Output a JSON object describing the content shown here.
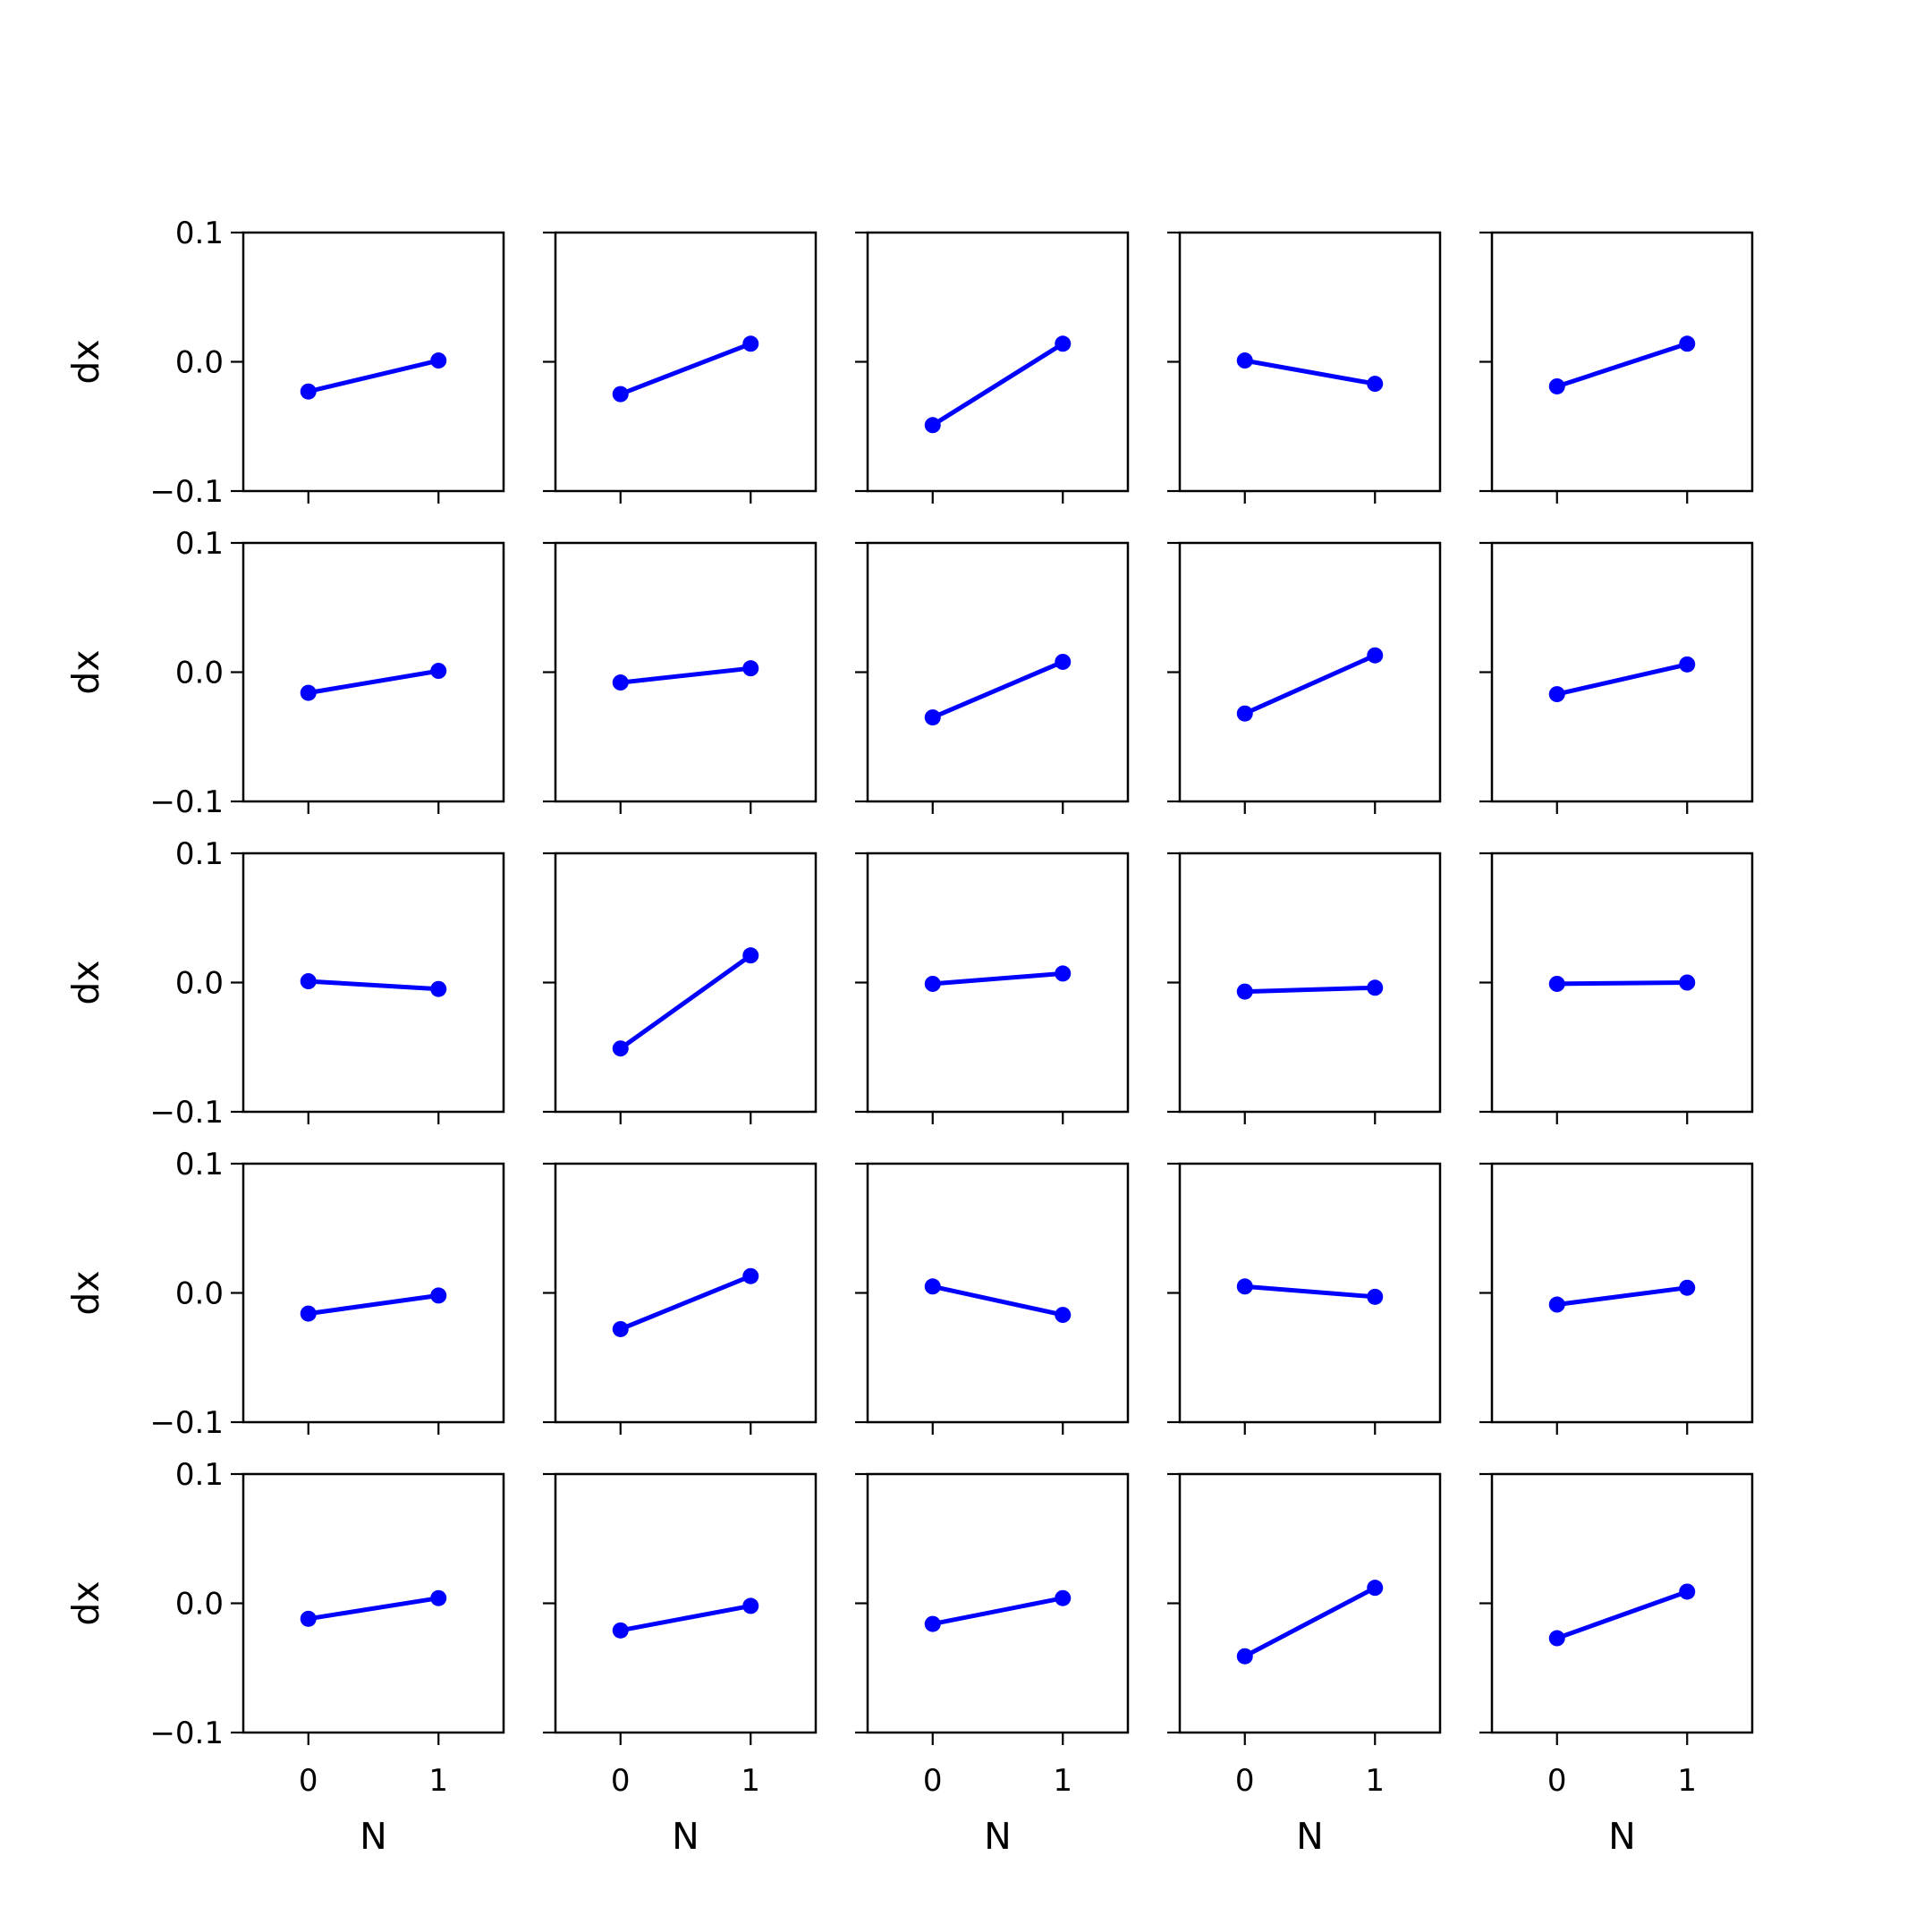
{
  "chart_data": {
    "type": "line",
    "layout": "grid",
    "rows": 5,
    "cols": 5,
    "xlabel": "N",
    "ylabel": "dx",
    "xlim": [
      -0.5,
      1.5
    ],
    "ylim": [
      -0.1,
      0.1
    ],
    "xticks": [
      0,
      1
    ],
    "xtick_labels": [
      "0",
      "1"
    ],
    "yticks": [
      0.1,
      0.0,
      -0.1
    ],
    "ytick_labels": [
      "0.1",
      "0.0",
      "−0.1"
    ],
    "x": [
      0,
      1
    ],
    "line_color": "#0000ff",
    "marker": "circle",
    "grid": false,
    "panels": [
      {
        "row": 0,
        "col": 0,
        "values": [
          -0.023,
          0.001
        ]
      },
      {
        "row": 0,
        "col": 1,
        "values": [
          -0.025,
          0.014
        ]
      },
      {
        "row": 0,
        "col": 2,
        "values": [
          -0.049,
          0.014
        ]
      },
      {
        "row": 0,
        "col": 3,
        "values": [
          0.001,
          -0.017
        ]
      },
      {
        "row": 0,
        "col": 4,
        "values": [
          -0.019,
          0.014
        ]
      },
      {
        "row": 1,
        "col": 0,
        "values": [
          -0.016,
          0.001
        ]
      },
      {
        "row": 1,
        "col": 1,
        "values": [
          -0.008,
          0.003
        ]
      },
      {
        "row": 1,
        "col": 2,
        "values": [
          -0.035,
          0.008
        ]
      },
      {
        "row": 1,
        "col": 3,
        "values": [
          -0.032,
          0.013
        ]
      },
      {
        "row": 1,
        "col": 4,
        "values": [
          -0.017,
          0.006
        ]
      },
      {
        "row": 2,
        "col": 0,
        "values": [
          0.001,
          -0.005
        ]
      },
      {
        "row": 2,
        "col": 1,
        "values": [
          -0.051,
          0.021
        ]
      },
      {
        "row": 2,
        "col": 2,
        "values": [
          -0.001,
          0.007
        ]
      },
      {
        "row": 2,
        "col": 3,
        "values": [
          -0.007,
          -0.004
        ]
      },
      {
        "row": 2,
        "col": 4,
        "values": [
          -0.001,
          0.0
        ]
      },
      {
        "row": 3,
        "col": 0,
        "values": [
          -0.016,
          -0.002
        ]
      },
      {
        "row": 3,
        "col": 1,
        "values": [
          -0.028,
          0.013
        ]
      },
      {
        "row": 3,
        "col": 2,
        "values": [
          0.005,
          -0.017
        ]
      },
      {
        "row": 3,
        "col": 3,
        "values": [
          0.005,
          -0.003
        ]
      },
      {
        "row": 3,
        "col": 4,
        "values": [
          -0.009,
          0.004
        ]
      },
      {
        "row": 4,
        "col": 0,
        "values": [
          -0.012,
          0.004
        ]
      },
      {
        "row": 4,
        "col": 1,
        "values": [
          -0.021,
          -0.002
        ]
      },
      {
        "row": 4,
        "col": 2,
        "values": [
          -0.016,
          0.004
        ]
      },
      {
        "row": 4,
        "col": 3,
        "values": [
          -0.041,
          0.012
        ]
      },
      {
        "row": 4,
        "col": 4,
        "values": [
          -0.027,
          0.009
        ]
      }
    ]
  }
}
